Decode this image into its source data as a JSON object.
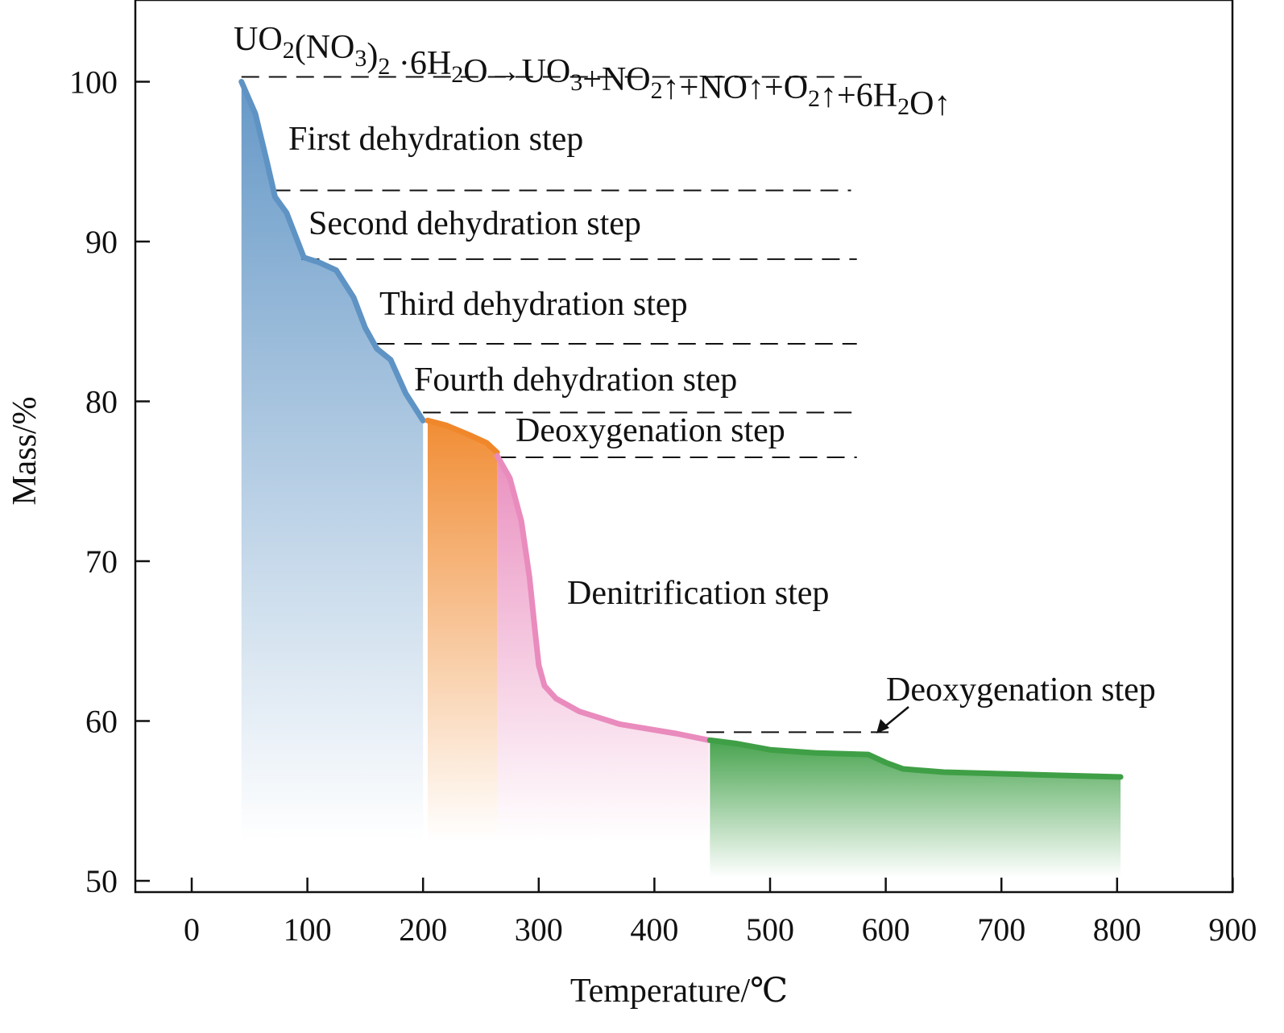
{
  "chart_data": {
    "type": "line",
    "title": "UO2(NO3)2 ·6H2O→UO3+NO2↑+NO↑+O2↑+6H2O↑",
    "xlabel": "Temperature/℃",
    "ylabel": "Mass/%",
    "xlim": [
      -50,
      900
    ],
    "ylim": [
      49.4,
      105
    ],
    "xticks": [
      0,
      100,
      200,
      300,
      400,
      500,
      600,
      700,
      800,
      900
    ],
    "yticks": [
      50,
      60,
      70,
      80,
      90,
      100
    ],
    "grid": false,
    "series": [
      {
        "name": "dehydration",
        "color": "#5e93c4",
        "x": [
          43,
          55,
          65,
          72,
          82,
          97,
          110,
          125,
          140,
          150,
          160,
          172,
          185,
          200
        ],
        "y": [
          100,
          98,
          95,
          92.8,
          91.8,
          89.0,
          88.7,
          88.2,
          86.5,
          84.6,
          83.3,
          82.6,
          80.5,
          78.8
        ]
      },
      {
        "name": "deoxygenation-1",
        "color": "#f0872a",
        "x": [
          204,
          220,
          240,
          255,
          264
        ],
        "y": [
          78.8,
          78.5,
          77.9,
          77.4,
          76.8
        ]
      },
      {
        "name": "denitrification",
        "color": "#e98bbd",
        "x": [
          264,
          275,
          285,
          292,
          297,
          300,
          305,
          315,
          335,
          370,
          420,
          447
        ],
        "y": [
          76.6,
          75.2,
          72.5,
          69.0,
          65.5,
          63.5,
          62.2,
          61.4,
          60.6,
          59.8,
          59.2,
          58.8
        ]
      },
      {
        "name": "deoxygenation-2",
        "color": "#3f9f46",
        "x": [
          448,
          470,
          500,
          540,
          585,
          600,
          615,
          650,
          700,
          750,
          803
        ],
        "y": [
          58.8,
          58.6,
          58.2,
          58.0,
          57.9,
          57.4,
          57.0,
          56.8,
          56.7,
          56.6,
          56.5
        ]
      }
    ],
    "reference_lines": [
      {
        "y": 100.3,
        "x": [
          43,
          580
        ]
      },
      {
        "y": 93.2,
        "x": [
          70,
          570
        ]
      },
      {
        "y": 88.9,
        "x": [
          95,
          575
        ]
      },
      {
        "y": 83.6,
        "x": [
          160,
          575
        ]
      },
      {
        "y": 79.3,
        "x": [
          200,
          575
        ]
      },
      {
        "y": 76.5,
        "x": [
          265,
          575
        ]
      },
      {
        "y": 59.3,
        "x": [
          445,
          605
        ]
      }
    ],
    "annotations": [
      "First dehydration step",
      "Second dehydration step",
      "Third dehydration step",
      "Fourth dehydration step",
      "Deoxygenation step",
      "Denitrification step",
      "Deoxygenation step"
    ]
  }
}
